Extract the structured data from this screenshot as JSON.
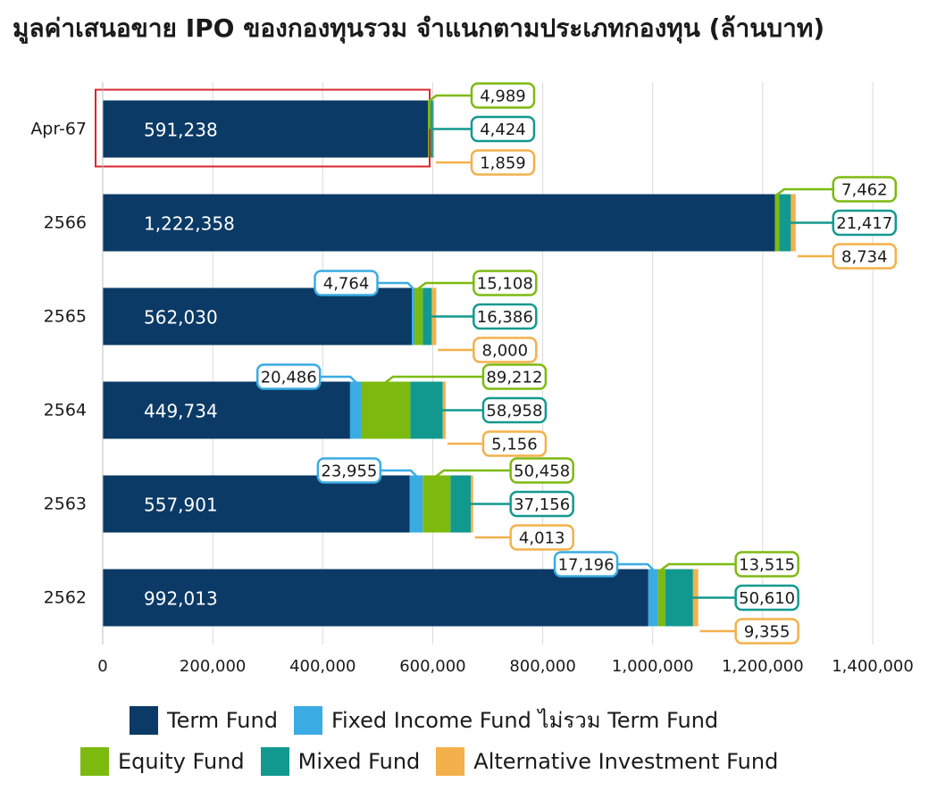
{
  "chart_data": {
    "type": "bar",
    "orientation": "horizontal",
    "stacked": true,
    "title": "มูลค่าเสนอขาย IPO ของกองทุนรวม จำแนกตามประเภทกองทุน (ล้านบาท)",
    "categories": [
      "Apr-67",
      "2566",
      "2565",
      "2564",
      "2563",
      "2562"
    ],
    "series": [
      {
        "name": "Term Fund",
        "color": "#0b3a66",
        "values": [
          591238,
          1222358,
          562030,
          449734,
          557901,
          992013
        ]
      },
      {
        "name": "Fixed Income Fund ไม่รวม Term Fund",
        "color": "#3aace3",
        "values": [
          0,
          0,
          4764,
          20486,
          23955,
          17196
        ]
      },
      {
        "name": "Equity Fund",
        "color": "#7dba10",
        "values": [
          4989,
          7462,
          15108,
          89212,
          50458,
          13515
        ]
      },
      {
        "name": "Mixed Fund",
        "color": "#12998f",
        "values": [
          4424,
          21417,
          16386,
          58958,
          37156,
          50610
        ]
      },
      {
        "name": "Alternative Investment Fund",
        "color": "#f4b04a",
        "values": [
          1859,
          8734,
          8000,
          5156,
          4013,
          9355
        ]
      }
    ],
    "data_labels": [
      {
        "term": "591,238",
        "fixed": "",
        "equity": "4,989",
        "mixed": "4,424",
        "alt": "1,859"
      },
      {
        "term": "1,222,358",
        "fixed": "",
        "equity": "7,462",
        "mixed": "21,417",
        "alt": "8,734"
      },
      {
        "term": "562,030",
        "fixed": "4,764",
        "equity": "15,108",
        "mixed": "16,386",
        "alt": "8,000"
      },
      {
        "term": "449,734",
        "fixed": "20,486",
        "equity": "89,212",
        "mixed": "58,958",
        "alt": "5,156"
      },
      {
        "term": "557,901",
        "fixed": "23,955",
        "equity": "50,458",
        "mixed": "37,156",
        "alt": "4,013"
      },
      {
        "term": "992,013",
        "fixed": "17,196",
        "equity": "13,515",
        "mixed": "50,610",
        "alt": "9,355"
      }
    ],
    "xlim": [
      0,
      1400000
    ],
    "xticks": [
      0,
      200000,
      400000,
      600000,
      800000,
      1000000,
      1200000,
      1400000
    ],
    "xtick_labels": [
      "0",
      "200,000",
      "400,000",
      "600,000",
      "800,000",
      "1,000,000",
      "1,200,000",
      "1,400,000"
    ],
    "grid": "vertical",
    "legend_position": "bottom",
    "highlight_category": "Apr-67",
    "highlight_color": "#d9262c"
  },
  "legend": {
    "row1": [
      {
        "label": "Term Fund",
        "color": "#0b3a66"
      },
      {
        "label": "Fixed Income Fund ไม่รวม Term Fund",
        "color": "#3aace3"
      }
    ],
    "row2": [
      {
        "label": "Equity Fund",
        "color": "#7dba10"
      },
      {
        "label": "Mixed Fund",
        "color": "#12998f"
      },
      {
        "label": "Alternative Investment Fund",
        "color": "#f4b04a"
      }
    ]
  }
}
